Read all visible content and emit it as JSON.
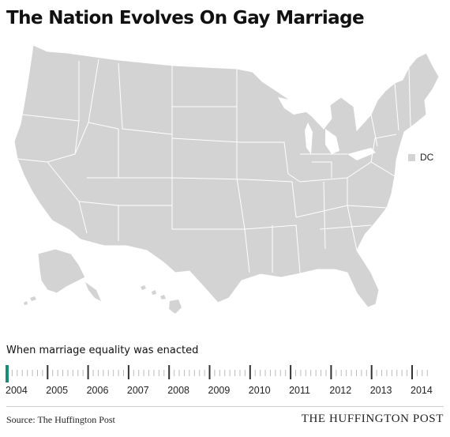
{
  "title": "The Nation Evolves On Gay Marriage",
  "legend": {
    "dc_label": "DC",
    "state_color": "#d3d3d3"
  },
  "timeline": {
    "label": "When marriage equality was enacted",
    "years": [
      "2004",
      "2005",
      "2006",
      "2007",
      "2008",
      "2009",
      "2010",
      "2011",
      "2012",
      "2013",
      "2014"
    ],
    "selected_year": "2004",
    "accent_color": "#1a8a78"
  },
  "footer": {
    "source": "Source: The Huffington Post",
    "publisher": "THE HUFFINGTON POST"
  }
}
